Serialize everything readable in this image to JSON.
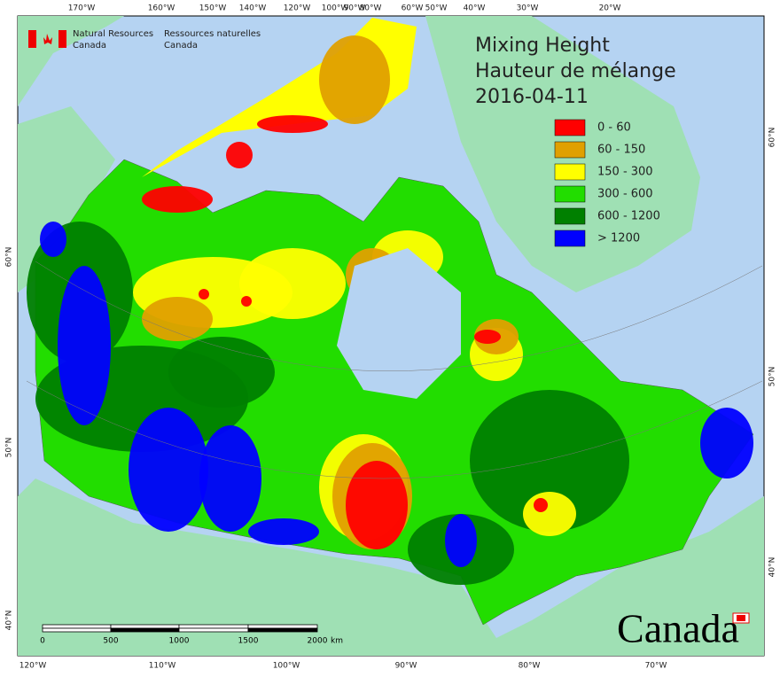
{
  "header": {
    "agency_en": [
      "Natural Resources",
      "Canada"
    ],
    "agency_fr": [
      "Ressources naturelles",
      "Canada"
    ]
  },
  "title": [
    "Mixing Height",
    "Hauteur de mélange",
    "2016-04-11"
  ],
  "legend": [
    {
      "label": "0 - 60",
      "color": "#ff0000"
    },
    {
      "label": "60 - 150",
      "color": "#e0a000"
    },
    {
      "label": "150 - 300",
      "color": "#ffff00"
    },
    {
      "label": "300 - 600",
      "color": "#22dd00"
    },
    {
      "label": "600 - 1200",
      "color": "#008000"
    },
    {
      "label": "> 1200",
      "color": "#0000ff"
    }
  ],
  "graticule": {
    "top": [
      "170°W",
      "160°W",
      "150°W",
      "140°W",
      "120°W",
      "100°W",
      "90°W",
      "80°W",
      "60°W",
      "50°W",
      "40°W",
      "30°W",
      "20°W"
    ],
    "bottom": [
      "120°W",
      "110°W",
      "100°W",
      "90°W",
      "80°W",
      "70°W"
    ],
    "left": [
      "60°N",
      "50°N",
      "40°N"
    ],
    "right": [
      "60°N",
      "50°N",
      "40°N"
    ]
  },
  "scale_bar": {
    "labels": [
      "0",
      "500",
      "1000",
      "1500",
      "2000"
    ],
    "unit": "km"
  },
  "wordmark": "Canada"
}
